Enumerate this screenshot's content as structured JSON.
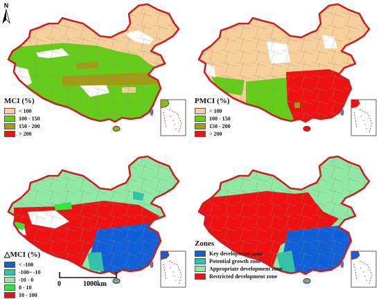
{
  "colors": {
    "border": "#c8201e",
    "coast": "#3a8fd8",
    "blank": "#ffffff",
    "tan": "#f7cf9b",
    "lightgreen": "#7fe37a",
    "green": "#66cc1a",
    "olive": "#a39a16",
    "red": "#ee1111",
    "blue": "#1160d8",
    "teal": "#33c3a8",
    "mint": "#8fe8a6",
    "brightgreen": "#33e83a",
    "grid": "#8a8a8a"
  },
  "north_arrow": {
    "label": "N",
    "icon": "north-arrow-icon"
  },
  "scale_bar": {
    "zero": "0",
    "distance": "1000km"
  },
  "panels": [
    {
      "id": "mci",
      "legend_title": "MCI (%)",
      "legend": [
        {
          "label": "< 100",
          "color": "#f7cf9b"
        },
        {
          "label": "100 - 150",
          "color": "#66cc1a"
        },
        {
          "label": "150 - 200",
          "color": "#a39a16"
        },
        {
          "label": "> 200",
          "color": "#ee1111"
        }
      ]
    },
    {
      "id": "pmci",
      "legend_title": "PMCI (%)",
      "legend": [
        {
          "label": "< 100",
          "color": "#f7cf9b"
        },
        {
          "label": "100 - 150",
          "color": "#66cc1a"
        },
        {
          "label": "150 - 200",
          "color": "#a39a16"
        },
        {
          "label": "> 200",
          "color": "#ee1111"
        }
      ]
    },
    {
      "id": "dmci",
      "legend_title": "△MCI (%)",
      "legend": [
        {
          "label": "< -100",
          "color": "#1160d8"
        },
        {
          "label": "-100~ -10",
          "color": "#33c3a8"
        },
        {
          "label": "-10 - 0",
          "color": "#8fe8a6"
        },
        {
          "label": "0 - 10",
          "color": "#33e83a"
        },
        {
          "label": "10 - 100",
          "color": "#ee1111"
        }
      ]
    },
    {
      "id": "zones",
      "legend_title": "Zones",
      "legend": [
        {
          "label": "Key development zone",
          "color": "#1160d8"
        },
        {
          "label": "Potential growth zone",
          "color": "#33c3a8"
        },
        {
          "label": "Appropriate development zone",
          "color": "#8fe8a6"
        },
        {
          "label": "Restricted development zone",
          "color": "#ee1111"
        }
      ]
    }
  ]
}
